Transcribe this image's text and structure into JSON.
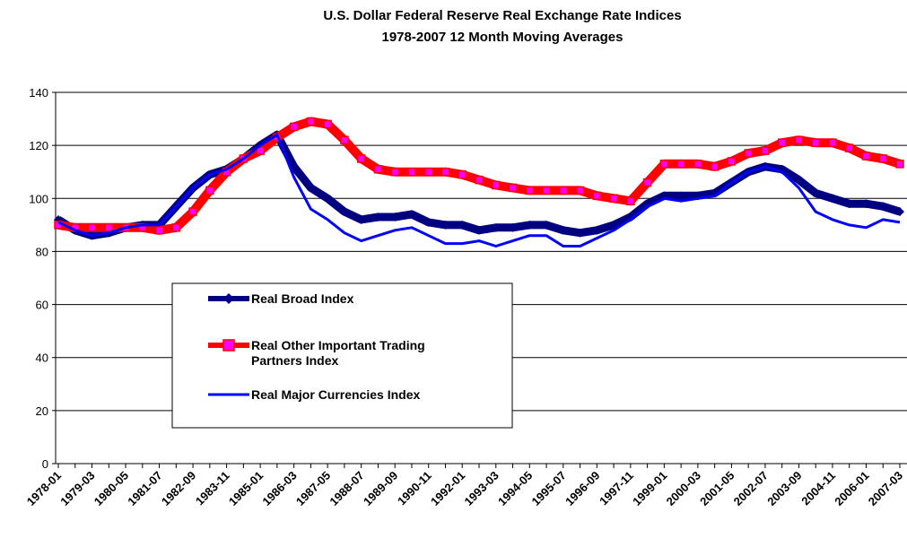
{
  "chart_data": {
    "type": "line",
    "title": "U.S. Dollar Federal Reserve Real Exchange Rate Indices",
    "subtitle": "1978-2007 12 Month Moving Averages",
    "categories": [
      "1978-01",
      null,
      "1979-03",
      null,
      "1980-05",
      null,
      "1981-07",
      null,
      "1982-09",
      null,
      "1983-11",
      null,
      "1985-01",
      null,
      "1986-03",
      null,
      "1987-05",
      null,
      "1988-07",
      null,
      "1989-09",
      null,
      "1990-11",
      null,
      "1992-01",
      null,
      "1993-03",
      null,
      "1994-05",
      null,
      "1995-07",
      null,
      "1996-09",
      null,
      "1997-11",
      null,
      "1999-01",
      null,
      "2000-03",
      null,
      "2001-05",
      null,
      "2002-07",
      null,
      "2003-09",
      null,
      "2004-11",
      null,
      "2006-01",
      null,
      "2007-03"
    ],
    "series": [
      {
        "name": "Real Broad Index",
        "color": "#000080",
        "marker": "diamond",
        "values": [
          92,
          88,
          86,
          87,
          89,
          90,
          90,
          97,
          104,
          109,
          111,
          115,
          120,
          124,
          112,
          104,
          100,
          95,
          92,
          93,
          93,
          94,
          91,
          90,
          90,
          88,
          89,
          89,
          90,
          90,
          88,
          87,
          88,
          90,
          93,
          98,
          101,
          101,
          101,
          102,
          106,
          110,
          112,
          111,
          107,
          102,
          100,
          98,
          98,
          97,
          95
        ]
      },
      {
        "name": "Real Other Important Trading Partners  Index",
        "color": "#ff0000",
        "marker": "square",
        "marker_color": "#ff00ff",
        "values": [
          90,
          89,
          89,
          89,
          89,
          89,
          88,
          89,
          95,
          103,
          110,
          115,
          118,
          123,
          127,
          129,
          128,
          122,
          115,
          111,
          110,
          110,
          110,
          110,
          109,
          107,
          105,
          104,
          103,
          103,
          103,
          103,
          101,
          100,
          99,
          106,
          113,
          113,
          113,
          112,
          114,
          117,
          118,
          121,
          122,
          121,
          121,
          119,
          116,
          115,
          113
        ]
      },
      {
        "name": "Real Major Currencies Index",
        "color": "#0000ff",
        "values": [
          91,
          88,
          86,
          87,
          89,
          90,
          90,
          97,
          104,
          109,
          111,
          115,
          120,
          124,
          108,
          96,
          92,
          87,
          84,
          86,
          88,
          89,
          86,
          83,
          83,
          84,
          82,
          84,
          86,
          86,
          82,
          82,
          85,
          88,
          92,
          97,
          100,
          99,
          100,
          101,
          106,
          110,
          112,
          110,
          104,
          95,
          92,
          90,
          89,
          92,
          91
        ]
      }
    ],
    "ylim": [
      0,
      140
    ],
    "yticks": [
      0,
      20,
      40,
      60,
      80,
      100,
      120,
      140
    ],
    "grid": true
  }
}
